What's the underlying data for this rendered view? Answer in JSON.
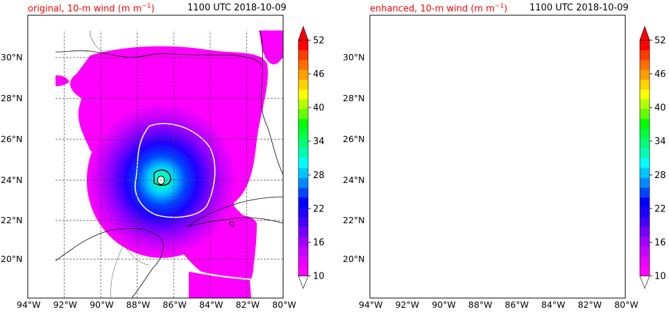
{
  "panels": [
    {
      "id": "original",
      "title_prefix": "original, 10-m wind (m m",
      "title_sup": "−1",
      "title_suffix": ")",
      "time": "1100 UTC 2018-10-09"
    },
    {
      "id": "enhanced",
      "title_prefix": "enhanced, 10-m wind (m m",
      "title_sup": "−1",
      "title_suffix": ")",
      "time": "1100 UTC 2018-10-09"
    }
  ],
  "x_ticks": [
    "94°W",
    "92°W",
    "90°W",
    "88°W",
    "86°W",
    "84°W",
    "82°W",
    "80°W"
  ],
  "y_ticks": [
    "30°N",
    "28°N",
    "26°N",
    "24°N",
    "22°N",
    "20°N"
  ],
  "colorbar": {
    "ticks": [
      "10",
      "16",
      "22",
      "28",
      "34",
      "40",
      "46",
      "52"
    ],
    "colors": [
      "#ff00ff",
      "#e600ff",
      "#c800ff",
      "#a000ff",
      "#7800ff",
      "#4600ff",
      "#1e00ff",
      "#0000ff",
      "#0046ff",
      "#008cff",
      "#00c8ff",
      "#00ffff",
      "#00ffb4",
      "#00ff78",
      "#00ff3c",
      "#00ff00",
      "#64ff00",
      "#b4ff00",
      "#ffff00",
      "#ffd200",
      "#ffa000",
      "#ff6e00",
      "#ff3c00",
      "#ff0000"
    ]
  },
  "colors": {
    "land": "#ffffff",
    "coast": "#000000",
    "contour_low": "#ffffff",
    "contour_high": "#000000"
  }
}
